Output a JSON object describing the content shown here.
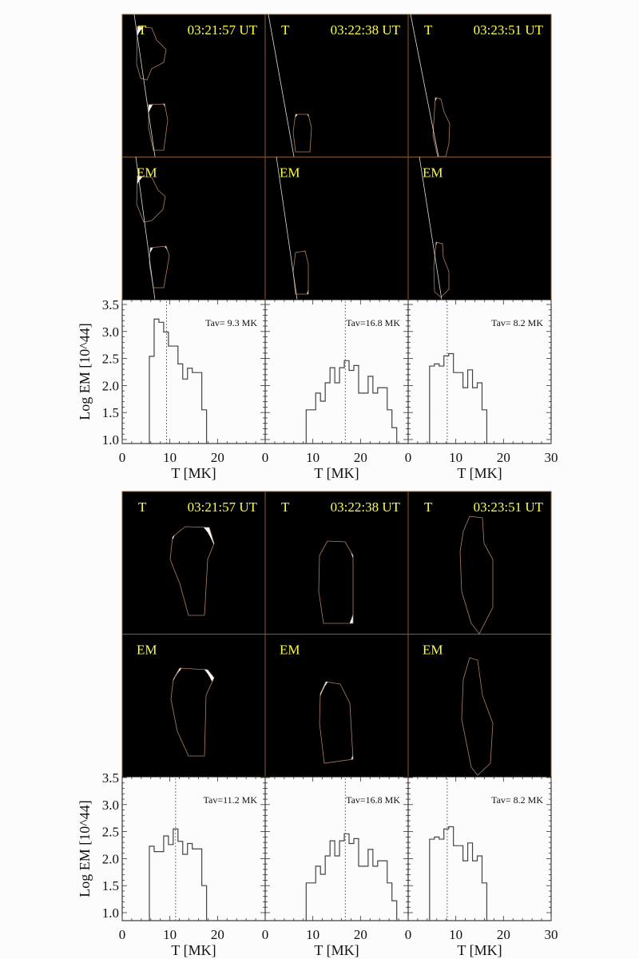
{
  "colors": {
    "panel_label": "#ffff44",
    "panel_border": "#8a5a30",
    "hist_line": "#444444",
    "t_map": [
      "#000000",
      "#7a1a00",
      "#d2500a",
      "#ff9a3c",
      "#ffffff"
    ],
    "em_map": [
      "#000000",
      "#001a80",
      "#0a50e0",
      "#5aa8ff",
      "#ffffff"
    ]
  },
  "blocks": [
    {
      "image_panels": [
        {
          "t_label": "T",
          "em_label": "EM",
          "time": "03:21:57 UT"
        },
        {
          "t_label": "T",
          "em_label": "EM",
          "time": "03:22:38 UT"
        },
        {
          "t_label": "T",
          "em_label": "EM",
          "time": "03:23:51 UT"
        }
      ],
      "xlabel": "T [MK]",
      "ylabel": "Log EM [10^44]"
    },
    {
      "image_panels": [
        {
          "t_label": "T",
          "em_label": "EM",
          "time": "03:21:57 UT"
        },
        {
          "t_label": "T",
          "em_label": "EM",
          "time": "03:22:38 UT"
        },
        {
          "t_label": "T",
          "em_label": "EM",
          "time": "03:23:51 UT"
        }
      ],
      "xlabel": "T [MK]",
      "ylabel": "Log EM [10^44]"
    }
  ],
  "chart_data": [
    {
      "type": "histogram",
      "block": 1,
      "panel": 1,
      "annotation": "Tav= 9.3 MK",
      "tav": 9.3,
      "bin_edges": [
        5.7,
        6.7,
        7.7,
        8.7,
        9.7,
        10.7,
        11.7,
        12.7,
        13.7,
        14.7,
        15.7,
        16.7,
        17.7
      ],
      "values": [
        2.54,
        3.23,
        3.17,
        2.99,
        2.73,
        2.73,
        2.4,
        2.12,
        2.32,
        2.24,
        2.24,
        1.55
      ],
      "xlim": [
        0,
        30
      ],
      "ylim": [
        0.93,
        3.6
      ],
      "xticks": [
        "0",
        "10",
        "20"
      ],
      "yticks": [
        "1.0",
        "1.5",
        "2.0",
        "2.5",
        "3.0",
        "3.5"
      ]
    },
    {
      "type": "histogram",
      "block": 1,
      "panel": 2,
      "annotation": "Tav=16.8 MK",
      "tav": 16.8,
      "bin_edges": [
        8.6,
        9.6,
        10.6,
        11.6,
        12.6,
        13.6,
        14.6,
        15.6,
        16.6,
        17.6,
        18.6,
        19.6,
        20.6,
        21.6,
        22.6,
        23.6,
        24.6,
        25.6,
        26.6,
        27.6
      ],
      "values": [
        1.55,
        1.55,
        1.86,
        1.71,
        2.05,
        2.33,
        2.05,
        2.33,
        2.46,
        2.28,
        2.37,
        1.86,
        1.86,
        2.17,
        1.86,
        1.96,
        1.96,
        1.55,
        1.22
      ],
      "xlim": [
        0,
        30
      ],
      "ylim": [
        0.93,
        3.6
      ],
      "xticks": [
        "0",
        "10",
        "20"
      ]
    },
    {
      "type": "histogram",
      "block": 1,
      "panel": 3,
      "annotation": "Tav= 8.2 MK",
      "tav": 8.2,
      "bin_edges": [
        4.5,
        5.5,
        6.5,
        7.5,
        8.5,
        9.5,
        10.5,
        11.5,
        12.5,
        13.5,
        14.5,
        15.5,
        16.5
      ],
      "values": [
        2.36,
        2.4,
        2.36,
        2.55,
        2.59,
        2.24,
        2.24,
        1.96,
        2.29,
        1.96,
        2.05,
        1.55
      ],
      "xlim": [
        0,
        30
      ],
      "ylim": [
        0.93,
        3.6
      ],
      "xticks": [
        "0",
        "10",
        "20",
        "30"
      ]
    },
    {
      "type": "histogram",
      "block": 2,
      "panel": 1,
      "annotation": "Tav=11.2 MK",
      "tav": 11.2,
      "bin_edges": [
        5.7,
        6.7,
        7.7,
        8.7,
        9.7,
        10.7,
        11.7,
        12.7,
        13.7,
        14.7,
        15.7,
        16.7,
        17.7
      ],
      "values": [
        2.23,
        2.13,
        2.13,
        2.42,
        2.26,
        2.55,
        2.32,
        2.08,
        2.28,
        2.18,
        2.18,
        1.5
      ],
      "xlim": [
        0,
        30
      ],
      "ylim": [
        0.93,
        3.6
      ],
      "xticks": [
        "0",
        "10",
        "20"
      ],
      "yticks": [
        "1.0",
        "1.5",
        "2.0",
        "2.5",
        "3.0",
        "3.5"
      ]
    },
    {
      "type": "histogram",
      "block": 2,
      "panel": 2,
      "annotation": "Tav=16.8 MK",
      "tav": 16.8,
      "bin_edges": [
        8.6,
        9.6,
        10.6,
        11.6,
        12.6,
        13.6,
        14.6,
        15.6,
        16.6,
        17.6,
        18.6,
        19.6,
        20.6,
        21.6,
        22.6,
        23.6,
        24.6,
        25.6,
        26.6,
        27.6
      ],
      "values": [
        1.55,
        1.55,
        1.86,
        1.71,
        2.05,
        2.33,
        2.05,
        2.33,
        2.46,
        2.28,
        2.37,
        1.86,
        1.86,
        2.17,
        1.86,
        1.96,
        1.96,
        1.55,
        1.22
      ],
      "xlim": [
        0,
        30
      ],
      "ylim": [
        0.93,
        3.6
      ],
      "xticks": [
        "0",
        "10",
        "20"
      ]
    },
    {
      "type": "histogram",
      "block": 2,
      "panel": 3,
      "annotation": "Tav= 8.2 MK",
      "tav": 8.2,
      "bin_edges": [
        4.5,
        5.5,
        6.5,
        7.5,
        8.5,
        9.5,
        10.5,
        11.5,
        12.5,
        13.5,
        14.5,
        15.5,
        16.5
      ],
      "values": [
        2.36,
        2.4,
        2.36,
        2.55,
        2.59,
        2.24,
        2.24,
        1.96,
        2.29,
        1.96,
        2.05,
        1.55
      ],
      "xlim": [
        0,
        30
      ],
      "ylim": [
        0.93,
        3.6
      ],
      "xticks": [
        "0",
        "10",
        "20",
        "30"
      ]
    }
  ]
}
